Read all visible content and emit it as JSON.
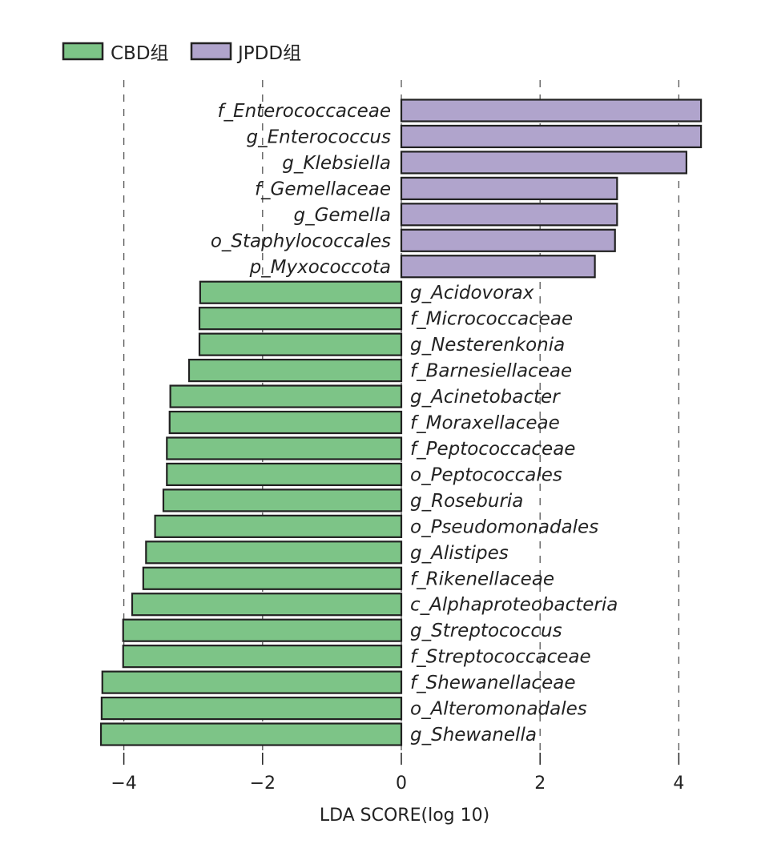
{
  "chart_data": {
    "type": "bar",
    "orientation": "horizontal",
    "xlabel": "LDA SCORE(log 10)",
    "xlim": [
      -4.5,
      4.5
    ],
    "xticks": [
      -4,
      -2,
      0,
      2,
      4
    ],
    "xtick_labels": [
      "−4",
      "−2",
      "0",
      "2",
      "4"
    ],
    "grid": "vertical dashed at ticks",
    "legend_placement": "top-left",
    "legend": [
      {
        "name": "CBD组",
        "color": "#7dc487"
      },
      {
        "name": "JPDD组",
        "color": "#b0a4cc"
      }
    ],
    "categories": [
      "f_Enterococcaceae",
      "g_Enterococcus",
      "g_Klebsiella",
      "f_Gemellaceae",
      "g_Gemella",
      "o_Staphylococcales",
      "p_Myxococcota",
      "g_Acidovorax",
      "f_Micrococcaceae",
      "g_Nesterenkonia",
      "f_Barnesiellaceae",
      "g_Acinetobacter",
      "f_Moraxellaceae",
      "f_Peptococcaceae",
      "o_Peptococcales",
      "g_Roseburia",
      "o_Pseudomonadales",
      "g_Alistipes",
      "f_Rikenellaceae",
      "c_Alphaproteobacteria",
      "g_Streptococcus",
      "f_Streptococcaceae",
      "f_Shewanellaceae",
      "o_Alteromonadales",
      "g_Shewanella"
    ],
    "values": [
      4.32,
      4.32,
      4.11,
      3.11,
      3.11,
      3.08,
      2.79,
      -2.9,
      -2.91,
      -2.91,
      -3.06,
      -3.33,
      -3.34,
      -3.38,
      -3.38,
      -3.43,
      -3.55,
      -3.68,
      -3.72,
      -3.88,
      -4.01,
      -4.01,
      -4.31,
      -4.32,
      -4.33
    ],
    "groups": [
      "JPDD组",
      "JPDD组",
      "JPDD组",
      "JPDD组",
      "JPDD组",
      "JPDD组",
      "JPDD组",
      "CBD组",
      "CBD组",
      "CBD组",
      "CBD组",
      "CBD组",
      "CBD组",
      "CBD组",
      "CBD组",
      "CBD组",
      "CBD组",
      "CBD组",
      "CBD组",
      "CBD组",
      "CBD组",
      "CBD组",
      "CBD组",
      "CBD组",
      "CBD组"
    ]
  }
}
